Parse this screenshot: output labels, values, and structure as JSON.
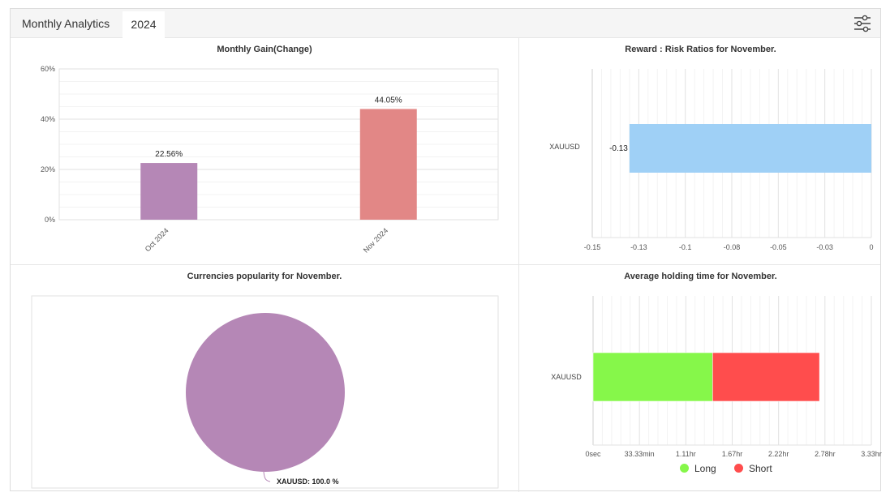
{
  "header": {
    "title": "Monthly Analytics",
    "tab_year": "2024",
    "filter_icon": "sliders-icon"
  },
  "colors": {
    "purple": "#b587b6",
    "salmon": "#e28786",
    "blue": "#9fd0f6",
    "green": "#86f74a",
    "red": "#ff4d4d"
  },
  "chart_data": [
    {
      "type": "bar",
      "title": "Monthly Gain(Change)",
      "categories": [
        "Oct 2024",
        "Nov 2024"
      ],
      "values": [
        22.56,
        44.05
      ],
      "value_labels": [
        "22.56%",
        "44.05%"
      ],
      "ylim": [
        0,
        60
      ],
      "yticks": [
        "0%",
        "20%",
        "40%",
        "60%"
      ],
      "grid": true
    },
    {
      "type": "bar",
      "orientation": "horizontal",
      "title": "Reward : Risk Ratios for November.",
      "categories": [
        "XAUUSD"
      ],
      "values": [
        -0.13
      ],
      "value_labels": [
        "-0.13"
      ],
      "xlim": [
        -0.15,
        0
      ],
      "xticks": [
        "-0.15",
        "-0.13",
        "-0.1",
        "-0.08",
        "-0.05",
        "-0.03",
        "0"
      ],
      "grid": true
    },
    {
      "type": "pie",
      "title": "Currencies popularity for November.",
      "slices": [
        {
          "label": "XAUUSD: 100.0 %",
          "value": 100
        }
      ]
    },
    {
      "type": "bar",
      "orientation": "horizontal",
      "stacked": true,
      "title": "Average holding time for November.",
      "categories": [
        "XAUUSD"
      ],
      "series": [
        {
          "name": "Long",
          "values": [
            1.43
          ]
        },
        {
          "name": "Short",
          "values": [
            1.28
          ]
        }
      ],
      "units": "hr",
      "xlim": [
        0,
        3.33
      ],
      "xticks": [
        "0sec",
        "33.33min",
        "1.11hr",
        "1.67hr",
        "2.22hr",
        "2.78hr",
        "3.33hr"
      ],
      "legend": "bottom",
      "grid": true
    }
  ]
}
